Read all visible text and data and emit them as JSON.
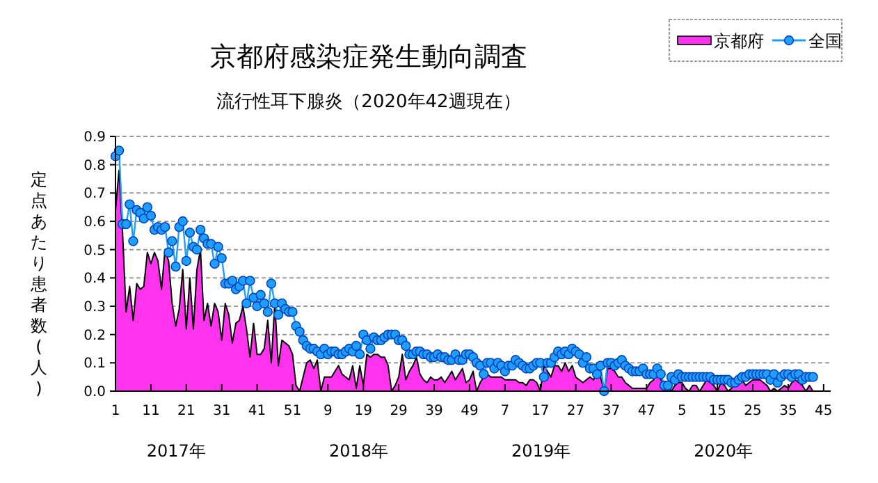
{
  "chart_data": {
    "type": "line",
    "title": "京都府感染症発生動向調査",
    "subtitle": "流行性耳下腺炎（2020年42週現在）",
    "ylabel": "定点あたり患者数(人)",
    "annotations": [
      "2017年",
      "2018年",
      "2019年",
      "2020年"
    ],
    "categories": [
      "1",
      null,
      null,
      null,
      null,
      null,
      null,
      null,
      null,
      null,
      "11",
      null,
      null,
      null,
      null,
      null,
      null,
      null,
      null,
      null,
      "21",
      null,
      null,
      null,
      null,
      null,
      null,
      null,
      null,
      null,
      "31",
      null,
      null,
      null,
      null,
      null,
      null,
      null,
      null,
      null,
      "41",
      null,
      null,
      null,
      null,
      null,
      null,
      null,
      null,
      null,
      "51",
      null,
      null,
      null,
      null,
      null,
      null,
      null,
      null,
      null,
      "9",
      null,
      null,
      null,
      null,
      null,
      null,
      null,
      null,
      null,
      "19",
      null,
      null,
      null,
      null,
      null,
      null,
      null,
      null,
      null,
      "29",
      null,
      null,
      null,
      null,
      null,
      null,
      null,
      null,
      null,
      "39",
      null,
      null,
      null,
      null,
      null,
      null,
      null,
      null,
      null,
      "49",
      null,
      null,
      null,
      null,
      null,
      null,
      null,
      null,
      null,
      "7",
      null,
      null,
      null,
      null,
      null,
      null,
      null,
      null,
      null,
      "17",
      null,
      null,
      null,
      null,
      null,
      null,
      null,
      null,
      null,
      "27",
      null,
      null,
      null,
      null,
      null,
      null,
      null,
      null,
      null,
      "37",
      null,
      null,
      null,
      null,
      null,
      null,
      null,
      null,
      null,
      "47",
      null,
      null,
      null,
      null,
      null,
      null,
      null,
      null,
      null,
      "5",
      null,
      null,
      null,
      null,
      null,
      null,
      null,
      null,
      null,
      "15",
      null,
      null,
      null,
      null,
      null,
      null,
      null,
      null,
      null,
      "25",
      null,
      null,
      null,
      null,
      null,
      null,
      null,
      null,
      null,
      "35",
      null,
      null,
      null,
      null,
      null,
      null,
      null,
      null,
      null,
      "45",
      null,
      null
    ],
    "series": [
      {
        "name": "京都府",
        "type": "area",
        "color": "#ff33ee",
        "values": [
          0.64,
          0.78,
          0.56,
          0.28,
          0.37,
          0.25,
          0.38,
          0.36,
          0.37,
          0.49,
          0.45,
          0.49,
          0.46,
          0.36,
          0.5,
          0.46,
          0.31,
          0.23,
          0.29,
          0.43,
          0.22,
          0.4,
          0.22,
          0.43,
          0.5,
          0.25,
          0.31,
          0.23,
          0.31,
          0.28,
          0.18,
          0.31,
          0.27,
          0.17,
          0.24,
          0.25,
          0.3,
          0.22,
          0.12,
          0.24,
          0.13,
          0.13,
          0.15,
          0.25,
          0.1,
          0.31,
          0.09,
          0.18,
          0.17,
          0.16,
          0.13,
          0.02,
          0.0,
          0.05,
          0.1,
          0.11,
          0.08,
          0.11,
          0.0,
          0.05,
          0.05,
          0.05,
          0.07,
          0.09,
          0.06,
          0.05,
          0.04,
          0.09,
          0.01,
          0.09,
          0.02,
          0.13,
          0.12,
          0.13,
          0.13,
          0.12,
          0.12,
          0.09,
          0.0,
          0.02,
          0.05,
          0.13,
          0.04,
          0.07,
          0.09,
          0.12,
          0.06,
          0.04,
          0.03,
          0.05,
          0.04,
          0.04,
          0.05,
          0.03,
          0.05,
          0.07,
          0.04,
          0.06,
          0.08,
          0.03,
          0.04,
          0.07,
          0.0,
          0.03,
          0.05,
          0.06,
          0.05,
          0.05,
          0.05,
          0.05,
          0.04,
          0.04,
          0.04,
          0.04,
          0.03,
          0.03,
          0.02,
          0.04,
          0.04,
          0.03,
          0.0,
          0.09,
          0.07,
          0.05,
          0.09,
          0.09,
          0.07,
          0.1,
          0.07,
          0.09,
          0.05,
          0.04,
          0.03,
          0.04,
          0.05,
          0.04,
          0.07,
          0.05,
          0.0,
          0.08,
          0.08,
          0.07,
          0.05,
          0.05,
          0.03,
          0.02,
          0.01,
          0.01,
          0.01,
          0.01,
          0.01,
          0.03,
          0.04,
          0.09,
          0.04,
          0.03,
          0.02,
          0.0,
          0.02,
          0.03,
          0.03,
          0.01,
          0.0,
          0.02,
          0.02,
          0.0,
          0.02,
          0.04,
          0.03,
          0.02,
          0.0,
          0.03,
          0.02,
          0.0,
          0.01,
          0.03,
          0.03,
          0.04,
          0.02,
          0.03,
          0.04,
          0.04,
          0.04,
          0.03,
          0.02,
          0.0,
          0.01,
          0.0,
          0.01,
          0.02,
          0.01,
          0.03,
          0.04,
          0.03,
          0.02,
          0.0,
          0.02,
          0.0,
          null,
          null,
          null,
          null,
          null
        ]
      },
      {
        "name": "全国",
        "color": "#1e9fff",
        "marker": "circle",
        "line_style": "solid",
        "values": [
          0.83,
          0.85,
          0.59,
          0.59,
          0.66,
          0.53,
          0.64,
          0.63,
          0.61,
          0.65,
          0.62,
          0.57,
          0.58,
          0.57,
          0.58,
          0.49,
          0.53,
          0.44,
          0.58,
          0.6,
          0.46,
          0.56,
          0.51,
          0.5,
          0.57,
          0.54,
          0.52,
          0.52,
          0.45,
          0.51,
          0.47,
          0.38,
          0.38,
          0.39,
          0.36,
          0.37,
          0.39,
          0.31,
          0.39,
          0.33,
          0.3,
          0.34,
          0.31,
          0.28,
          0.38,
          0.31,
          0.27,
          0.31,
          0.29,
          0.28,
          0.28,
          0.23,
          0.21,
          0.18,
          0.16,
          0.15,
          0.15,
          0.14,
          0.13,
          0.15,
          0.13,
          0.14,
          0.14,
          0.13,
          0.13,
          0.14,
          0.15,
          0.14,
          0.16,
          0.13,
          0.2,
          0.18,
          0.15,
          0.19,
          0.18,
          0.18,
          0.19,
          0.2,
          0.2,
          0.2,
          0.18,
          0.18,
          0.16,
          0.13,
          0.13,
          0.14,
          0.14,
          0.13,
          0.13,
          0.12,
          0.12,
          0.13,
          0.12,
          0.12,
          0.11,
          0.11,
          0.13,
          0.11,
          0.11,
          0.13,
          0.13,
          0.12,
          0.1,
          0.09,
          0.06,
          0.1,
          0.1,
          0.08,
          0.1,
          0.09,
          0.07,
          0.09,
          0.09,
          0.11,
          0.1,
          0.09,
          0.08,
          0.08,
          0.09,
          0.1,
          0.1,
          0.05,
          0.1,
          0.1,
          0.12,
          0.14,
          0.13,
          0.14,
          0.13,
          0.15,
          0.14,
          0.13,
          0.1,
          0.12,
          0.08,
          0.08,
          0.06,
          0.09,
          0.0,
          0.1,
          0.1,
          0.09,
          0.1,
          0.11,
          0.09,
          0.08,
          0.07,
          0.07,
          0.07,
          0.08,
          0.06,
          0.06,
          0.06,
          0.08,
          0.06,
          0.02,
          0.02,
          0.05,
          0.04,
          0.06,
          0.05,
          0.05,
          0.05,
          0.05,
          0.05,
          0.05,
          0.05,
          0.05,
          0.05,
          0.04,
          0.04,
          0.04,
          0.04,
          0.04,
          0.03,
          0.03,
          0.04,
          0.05,
          0.05,
          0.06,
          0.06,
          0.06,
          0.06,
          0.06,
          0.06,
          0.04,
          0.06,
          0.03,
          0.05,
          0.06,
          0.06,
          0.05,
          0.06,
          0.06,
          0.04,
          0.05,
          0.05,
          0.05,
          null,
          null,
          null,
          null,
          null
        ]
      }
    ],
    "ylim": [
      0,
      0.9
    ],
    "yticks": [
      {
        "value": 0,
        "label": "0.0"
      },
      0.1,
      0.2,
      0.3,
      0.4,
      0.5,
      0.6,
      0.7,
      0.8,
      0.9
    ],
    "grid": "y",
    "legend": "top right"
  }
}
